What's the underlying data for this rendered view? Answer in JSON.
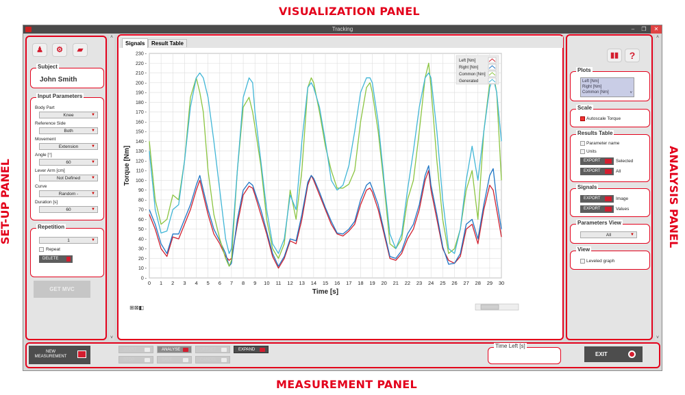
{
  "labels": {
    "visualization": "VISUALIZATION PANEL",
    "setup": "SET-UP PANEL",
    "analysis": "ANALYSIS PANEL",
    "measurement": "MEASUREMENT PANEL"
  },
  "window": {
    "title": "Tracking"
  },
  "setup": {
    "subject_title": "Subject",
    "subject_name": "John Smith",
    "input_title": "Input Parameters",
    "fields": [
      {
        "label": "Body Part",
        "value": "Knee"
      },
      {
        "label": "Reference Side",
        "value": "Both"
      },
      {
        "label": "Movement",
        "value": "Extension"
      },
      {
        "label": "Angle [°]",
        "value": "60"
      },
      {
        "label": "Lever Arm [cm]",
        "value": "Not Defined"
      },
      {
        "label": "Curve",
        "value": "Random -"
      },
      {
        "label": "Duration [s]",
        "value": "60"
      }
    ],
    "repetition_title": "Repetition",
    "repetition_value": "1",
    "repeat_label": "Repeat",
    "delete_label": "DELETE",
    "get_mvc_label": "GET MVC"
  },
  "tabs": [
    "Signals",
    "Result Table"
  ],
  "chart_data": {
    "type": "line",
    "xlabel": "Time [s]",
    "ylabel": "Torque [Nm]",
    "xlim": [
      0,
      30
    ],
    "ylim": [
      0,
      230
    ],
    "x_ticks": [
      0,
      1,
      2,
      3,
      4,
      5,
      6,
      7,
      8,
      9,
      10,
      11,
      12,
      13,
      14,
      15,
      16,
      17,
      18,
      19,
      20,
      21,
      22,
      23,
      24,
      25,
      26,
      27,
      28,
      29,
      30
    ],
    "y_ticks": [
      0,
      10,
      20,
      30,
      40,
      50,
      60,
      70,
      80,
      90,
      100,
      110,
      120,
      130,
      140,
      150,
      160,
      170,
      180,
      190,
      200,
      210,
      220,
      230
    ],
    "grid": true,
    "legend_position": "top-right",
    "x": [
      0,
      0.5,
      1,
      1.5,
      2,
      2.5,
      3,
      3.5,
      4,
      4.3,
      4.6,
      5,
      5.5,
      6,
      6.5,
      6.8,
      7,
      7.5,
      8,
      8.5,
      8.8,
      9,
      9.5,
      10,
      10.5,
      11,
      11.5,
      12,
      12.5,
      13,
      13.5,
      13.8,
      14,
      14.5,
      15,
      15.5,
      16,
      16.5,
      17,
      17.5,
      18,
      18.5,
      18.8,
      19,
      19.5,
      20,
      20.5,
      21,
      21.5,
      22,
      22.5,
      23,
      23.5,
      23.8,
      24,
      24.5,
      25,
      25.5,
      26,
      26.5,
      27,
      27.5,
      28,
      28.5,
      29,
      29.3,
      29.6,
      30
    ],
    "series": [
      {
        "name": "Left [Nm]",
        "color": "#d0202f",
        "values": [
          65,
          50,
          30,
          22,
          42,
          40,
          55,
          70,
          90,
          100,
          85,
          65,
          45,
          35,
          22,
          18,
          20,
          55,
          85,
          94,
          92,
          85,
          65,
          45,
          22,
          10,
          20,
          38,
          35,
          60,
          95,
          105,
          100,
          85,
          70,
          55,
          45,
          43,
          48,
          55,
          75,
          90,
          92,
          88,
          70,
          45,
          20,
          18,
          25,
          40,
          50,
          70,
          100,
          110,
          90,
          60,
          30,
          18,
          15,
          22,
          50,
          55,
          35,
          70,
          95,
          90,
          70,
          42
        ]
      },
      {
        "name": "Right [Nm]",
        "color": "#1d74c4",
        "values": [
          70,
          55,
          35,
          25,
          45,
          45,
          60,
          75,
          95,
          105,
          90,
          70,
          50,
          38,
          25,
          12,
          15,
          60,
          90,
          98,
          95,
          88,
          70,
          48,
          25,
          12,
          22,
          40,
          38,
          65,
          98,
          105,
          102,
          88,
          72,
          58,
          46,
          45,
          50,
          58,
          80,
          95,
          98,
          92,
          75,
          48,
          22,
          20,
          28,
          45,
          55,
          75,
          105,
          115,
          95,
          65,
          32,
          14,
          15,
          25,
          55,
          60,
          40,
          75,
          105,
          112,
          80,
          50
        ]
      },
      {
        "name": "Common [Nm]",
        "color": "#8ac43f",
        "values": [
          140,
          80,
          55,
          60,
          85,
          80,
          120,
          185,
          205,
          190,
          170,
          110,
          65,
          40,
          20,
          12,
          18,
          110,
          175,
          185,
          170,
          155,
          115,
          60,
          30,
          20,
          35,
          90,
          60,
          110,
          195,
          205,
          200,
          170,
          135,
          110,
          92,
          92,
          96,
          110,
          160,
          195,
          200,
          190,
          150,
          95,
          35,
          30,
          40,
          80,
          100,
          150,
          205,
          220,
          195,
          120,
          60,
          25,
          30,
          50,
          90,
          110,
          60,
          150,
          200,
          210,
          190,
          100
        ]
      },
      {
        "name": "Generated",
        "color": "#3fb5d6",
        "values": [
          130,
          70,
          46,
          48,
          70,
          75,
          120,
          175,
          205,
          210,
          205,
          185,
          140,
          90,
          40,
          25,
          30,
          110,
          185,
          205,
          200,
          170,
          120,
          70,
          35,
          25,
          40,
          85,
          70,
          140,
          195,
          200,
          195,
          175,
          140,
          100,
          90,
          95,
          115,
          150,
          190,
          205,
          205,
          200,
          160,
          100,
          45,
          30,
          45,
          90,
          130,
          175,
          205,
          210,
          205,
          150,
          80,
          30,
          25,
          50,
          100,
          135,
          100,
          150,
          195,
          205,
          190,
          140
        ]
      }
    ]
  },
  "analysis": {
    "plots_title": "Plots",
    "plots_items": [
      "Left [Nm]",
      "Right [Nm]",
      "Common [Nm]"
    ],
    "scale_title": "Scale",
    "autoscale_label": "Autoscale Torque",
    "results_title": "Results Table",
    "param_name_label": "Parameter name",
    "units_label": "Units",
    "export_label": "EXPORT",
    "selected_label": "Selected",
    "all_label": "All",
    "signals_title": "Signals",
    "image_label": "Image",
    "values_label": "Values",
    "params_view_title": "Parameters View",
    "params_view_value": "All",
    "view_title": "View",
    "leveled_label": "Leveled graph"
  },
  "measurement": {
    "new_label": "NEW MEASUREMENT",
    "start": "START",
    "analyse": "ANALYSE",
    "offset": "OFFSET",
    "expand": "EXPAND",
    "stop": "STOP",
    "save": "SAVE",
    "cancel": "CANCEL",
    "time_left_title": "Time Left [s]",
    "exit": "EXIT"
  }
}
